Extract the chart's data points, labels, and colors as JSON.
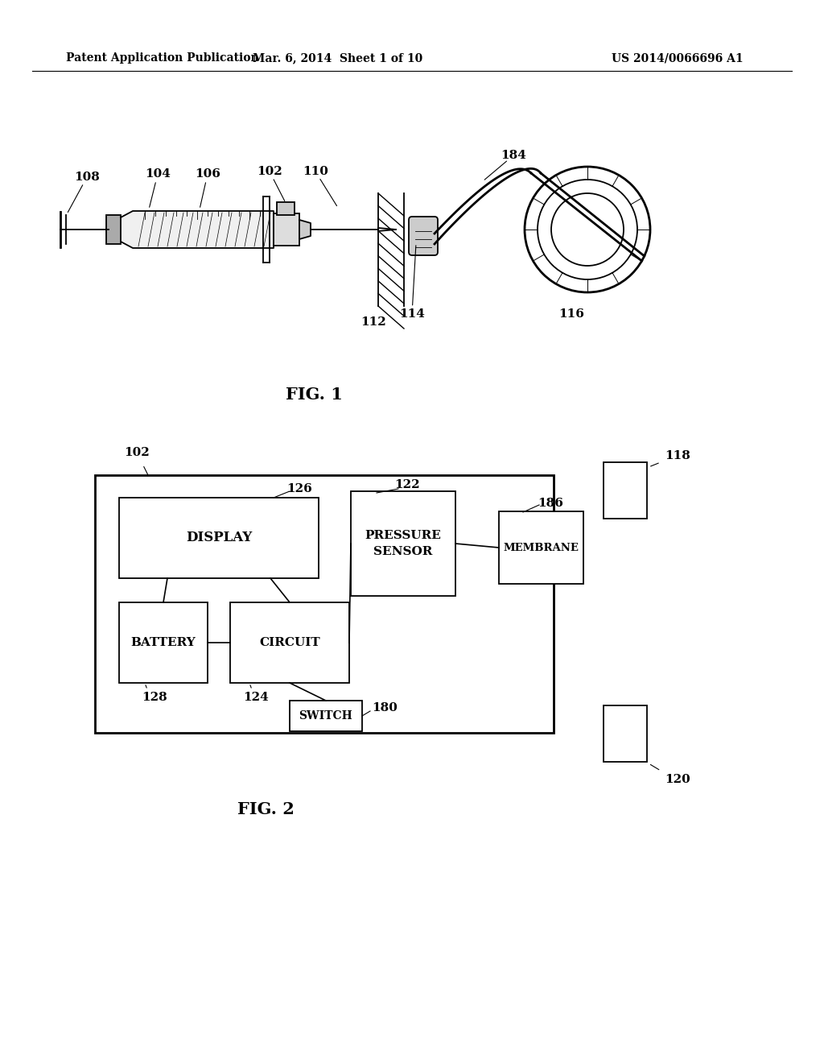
{
  "bg_color": "#ffffff",
  "header_left": "Patent Application Publication",
  "header_mid": "Mar. 6, 2014  Sheet 1 of 10",
  "header_right": "US 2014/0066696 A1",
  "fig1_label": "FIG. 1",
  "fig2_label": "FIG. 2"
}
